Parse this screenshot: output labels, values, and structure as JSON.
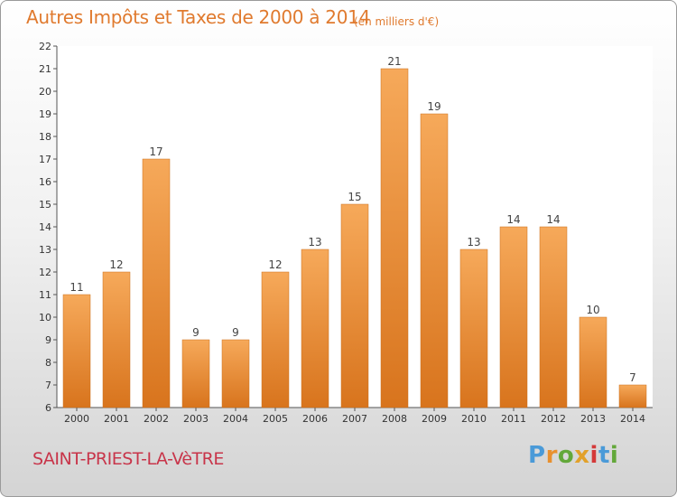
{
  "header": {
    "title": "Autres Impôts et Taxes de 2000 à 2014",
    "subtitle": "(en milliers d'€)"
  },
  "footer": {
    "commune": "SAINT-PRIEST-LA-VèTRE",
    "logo_text": "Proxiti"
  },
  "colors": {
    "bar_top": "#f6a95a",
    "bar_bottom": "#d8741d",
    "title": "#e07a2e",
    "commune": "#c8354a",
    "logo_letters": [
      "#4a9ad8",
      "#e8902e",
      "#63a83a",
      "#e2a12a",
      "#d43a3a",
      "#4a9ad8",
      "#63a83a"
    ]
  },
  "chart_data": {
    "type": "bar",
    "title": "Autres Impôts et Taxes de 2000 à 2014",
    "subtitle": "(en milliers d'€)",
    "categories": [
      "2000",
      "2001",
      "2002",
      "2003",
      "2004",
      "2005",
      "2006",
      "2007",
      "2008",
      "2009",
      "2010",
      "2011",
      "2012",
      "2013",
      "2014"
    ],
    "values": [
      11,
      12,
      17,
      9,
      9,
      12,
      13,
      15,
      21,
      19,
      13,
      14,
      14,
      10,
      7
    ],
    "ylim": [
      6,
      22
    ],
    "yticks": [
      6,
      7,
      8,
      9,
      10,
      11,
      12,
      13,
      14,
      15,
      16,
      17,
      18,
      19,
      20,
      21,
      22
    ],
    "xlabel": "",
    "ylabel": "",
    "grid": false,
    "data_labels": true
  }
}
